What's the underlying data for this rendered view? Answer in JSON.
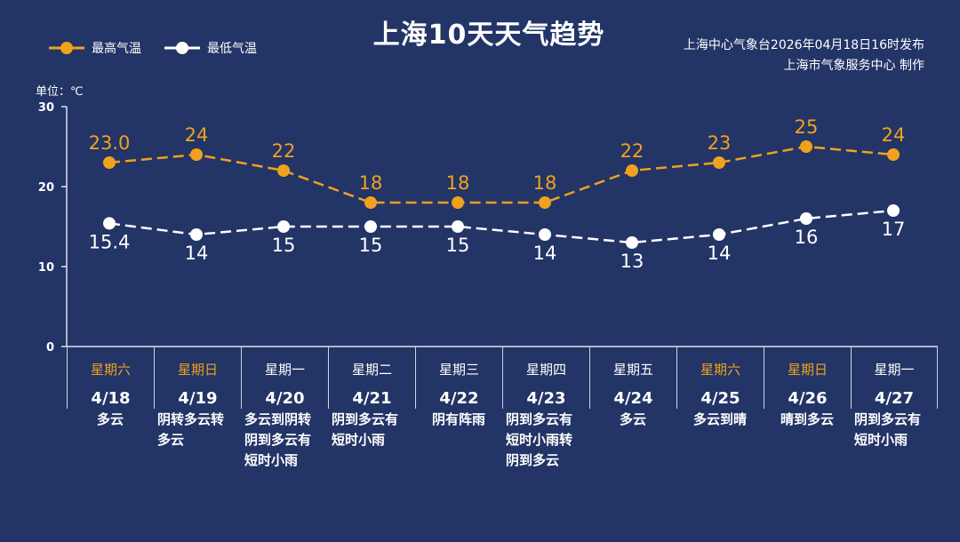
{
  "title": "上海10天天气趋势",
  "legend": {
    "high": "最高气温",
    "low": "最低气温"
  },
  "source": {
    "line1": "上海中心气象台2026年04月18日16时发布",
    "line2": "上海市气象服务中心 制作"
  },
  "unit": "单位：℃",
  "colors": {
    "background": "#233466",
    "high": "#f0a21e",
    "low": "#ffffff",
    "weekend": "#f0a21e"
  },
  "chart_data": {
    "type": "line",
    "title": "上海10天天气趋势",
    "ylim": [
      0,
      30
    ],
    "yticks": [
      0,
      10,
      20,
      30
    ],
    "categories": [
      "4/18",
      "4/19",
      "4/20",
      "4/21",
      "4/22",
      "4/23",
      "4/24",
      "4/25",
      "4/26",
      "4/27"
    ],
    "series": [
      {
        "name": "最高气温",
        "values": [
          23.0,
          24,
          22,
          18,
          18,
          18,
          22,
          23,
          25,
          24
        ],
        "labels": [
          "23.0",
          "24",
          "22",
          "18",
          "18",
          "18",
          "22",
          "23",
          "25",
          "24"
        ]
      },
      {
        "name": "最低气温",
        "values": [
          15.4,
          14,
          15,
          15,
          15,
          14,
          13,
          14,
          16,
          17
        ],
        "labels": [
          "15.4",
          "14",
          "15",
          "15",
          "15",
          "14",
          "13",
          "14",
          "16",
          "17"
        ]
      }
    ]
  },
  "days": [
    {
      "weekday": "星期六",
      "date": "4/18",
      "weather": "多云",
      "weekend": true
    },
    {
      "weekday": "星期日",
      "date": "4/19",
      "weather": "阴转多云转多云",
      "weekend": true
    },
    {
      "weekday": "星期一",
      "date": "4/20",
      "weather": "多云到阴转阴到多云有短时小雨",
      "weekend": false
    },
    {
      "weekday": "星期二",
      "date": "4/21",
      "weather": "阴到多云有短时小雨",
      "weekend": false
    },
    {
      "weekday": "星期三",
      "date": "4/22",
      "weather": "阴有阵雨",
      "weekend": false
    },
    {
      "weekday": "星期四",
      "date": "4/23",
      "weather": "阴到多云有短时小雨转阴到多云",
      "weekend": false
    },
    {
      "weekday": "星期五",
      "date": "4/24",
      "weather": "多云",
      "weekend": false
    },
    {
      "weekday": "星期六",
      "date": "4/25",
      "weather": "多云到晴",
      "weekend": true
    },
    {
      "weekday": "星期日",
      "date": "4/26",
      "weather": "晴到多云",
      "weekend": true
    },
    {
      "weekday": "星期一",
      "date": "4/27",
      "weather": "阴到多云有短时小雨",
      "weekend": false
    }
  ]
}
